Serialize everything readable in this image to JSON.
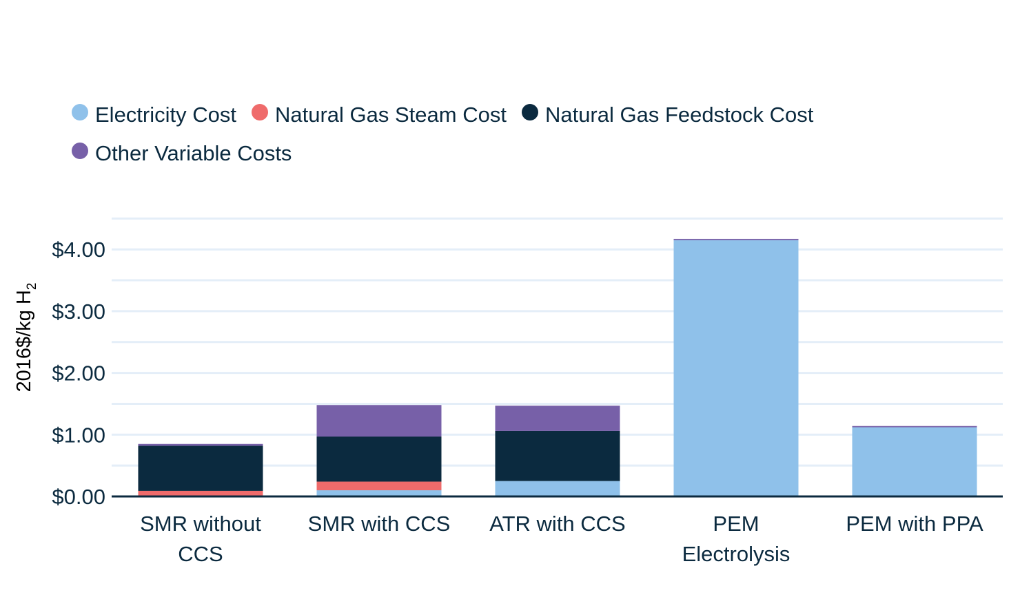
{
  "chart_data": {
    "type": "bar",
    "stacked": true,
    "categories": [
      "SMR without CCS",
      "SMR with CCS",
      "ATR with CCS",
      "PEM Electrolysis",
      "PEM with PPA"
    ],
    "category_lines": [
      [
        "SMR without",
        "CCS"
      ],
      [
        "SMR with CCS"
      ],
      [
        "ATR with CCS"
      ],
      [
        "PEM",
        "Electrolysis"
      ],
      [
        "PEM with PPA"
      ]
    ],
    "series": [
      {
        "name": "Electricity Cost",
        "color": "#8fc1ea",
        "values": [
          0.01,
          0.1,
          0.25,
          4.15,
          1.12
        ]
      },
      {
        "name": "Natural Gas Steam Cost",
        "color": "#ef6b6b",
        "values": [
          0.08,
          0.14,
          0.0,
          0.0,
          0.0
        ]
      },
      {
        "name": "Natural Gas Feedstock Cost",
        "color": "#0b2a3f",
        "values": [
          0.73,
          0.73,
          0.81,
          0.0,
          0.0
        ]
      },
      {
        "name": "Other Variable Costs",
        "color": "#7760a8",
        "values": [
          0.03,
          0.51,
          0.41,
          0.02,
          0.02
        ]
      }
    ],
    "legend_rows": [
      [
        0,
        1,
        2
      ],
      [
        3
      ]
    ],
    "ylabel": "2016$/kg H",
    "ylabel_subscript": "2",
    "ylim": [
      0,
      4.5
    ],
    "yticks": [
      {
        "value": 0,
        "label": "$0.00"
      },
      {
        "value": 1,
        "label": "$1.00"
      },
      {
        "value": 2,
        "label": "$2.00"
      },
      {
        "value": 3,
        "label": "$3.00"
      },
      {
        "value": 4,
        "label": "$4.00"
      }
    ],
    "gridlines": [
      0.5,
      1,
      1.5,
      2,
      2.5,
      3,
      3.5,
      4,
      4.5
    ],
    "grid": true,
    "legend_position": "top-left"
  }
}
